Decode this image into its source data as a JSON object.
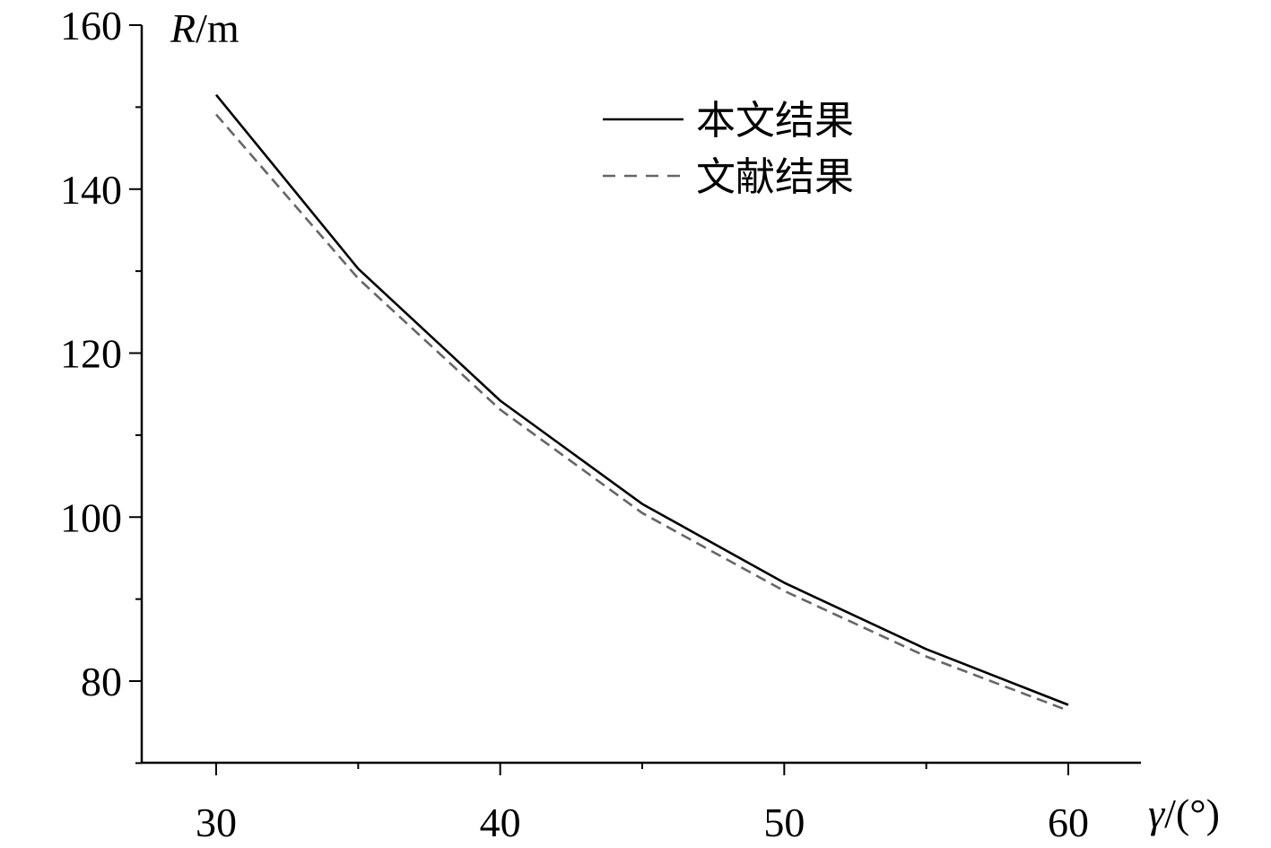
{
  "chart_data": {
    "type": "line",
    "x_ticks": [
      30,
      40,
      50,
      60
    ],
    "y_ticks": [
      80,
      100,
      120,
      140,
      160
    ],
    "xlim": [
      27.5,
      62.5
    ],
    "ylim": [
      70,
      160
    ],
    "xlabel_var": "γ",
    "xlabel_unit": "/(°)",
    "ylabel_var": "R",
    "ylabel_unit": "/m",
    "legend_position": "top-right",
    "grid": false,
    "series": [
      {
        "name": "本文结果",
        "style": "solid",
        "color": "#000000",
        "x": [
          30,
          35,
          40,
          45,
          50,
          55,
          60
        ],
        "values": [
          151.5,
          130.3,
          114.2,
          101.6,
          92.0,
          83.9,
          77.1
        ]
      },
      {
        "name": "文献结果",
        "style": "dashed",
        "color": "#666666",
        "x": [
          30,
          35,
          40,
          45,
          50,
          55,
          60
        ],
        "values": [
          149.1,
          129.1,
          113.1,
          100.5,
          91.0,
          83.0,
          76.4
        ]
      }
    ]
  }
}
